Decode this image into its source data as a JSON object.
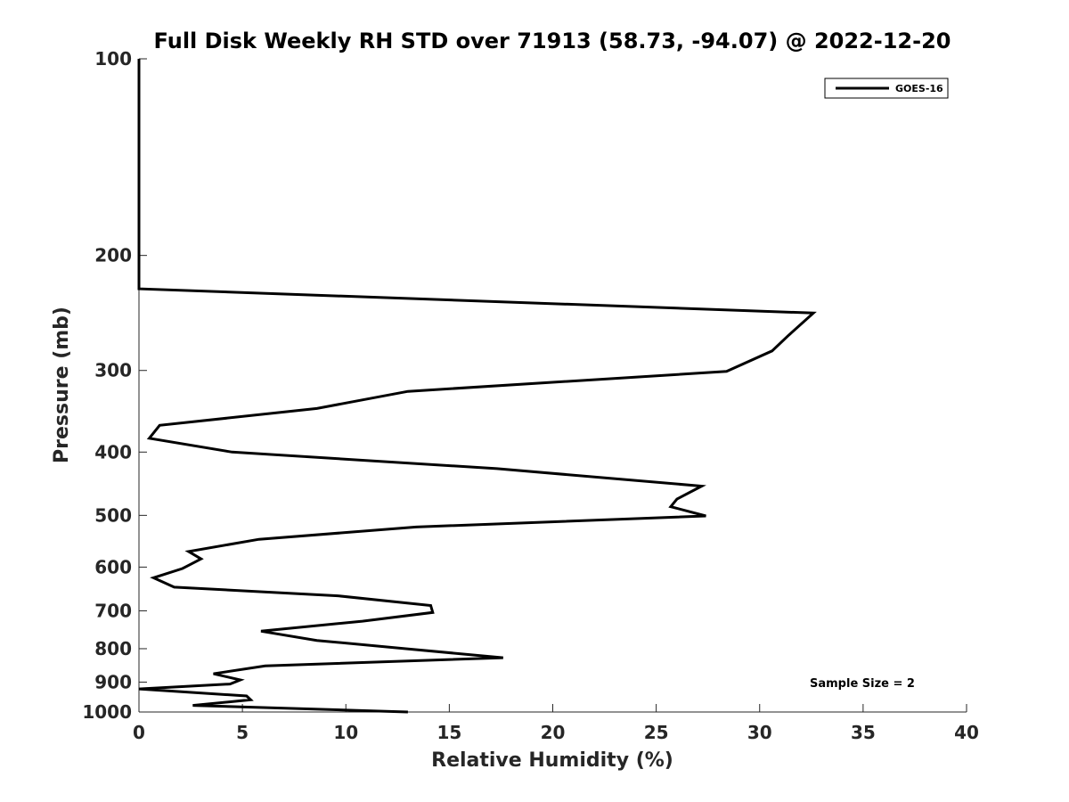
{
  "chart_data": {
    "type": "line",
    "title": "Full Disk Weekly RH STD over 71913 (58.73, -94.07) @ 2022-12-20",
    "xlabel": "Relative Humidity (%)",
    "ylabel": "Pressure (mb)",
    "xlim": [
      0,
      40
    ],
    "ylim": [
      100,
      1000
    ],
    "yscale": "log",
    "yreversed": true,
    "x_ticks": [
      0,
      5,
      10,
      15,
      20,
      25,
      30,
      35,
      40
    ],
    "y_ticks": [
      100,
      200,
      300,
      400,
      500,
      600,
      700,
      800,
      900,
      1000
    ],
    "grid": false,
    "legend_position": "top-right",
    "annotation": "Sample Size = 2",
    "series": [
      {
        "name": "GOES-16",
        "color": "#000000",
        "points": [
          [
            0,
            100
          ],
          [
            0,
            150
          ],
          [
            0,
            200
          ],
          [
            0,
            225
          ],
          [
            32.6,
            245
          ],
          [
            31.4,
            265
          ],
          [
            30.6,
            280
          ],
          [
            28.4,
            301
          ],
          [
            13.0,
            323
          ],
          [
            8.6,
            343
          ],
          [
            1.0,
            364
          ],
          [
            0.5,
            381
          ],
          [
            4.5,
            400
          ],
          [
            17.3,
            424
          ],
          [
            27.2,
            451
          ],
          [
            26.0,
            472
          ],
          [
            25.7,
            485
          ],
          [
            27.4,
            501
          ],
          [
            13.4,
            521
          ],
          [
            5.8,
            544
          ],
          [
            2.4,
            568
          ],
          [
            3.0,
            583
          ],
          [
            2.1,
            603
          ],
          [
            0.7,
            623
          ],
          [
            1.7,
            644
          ],
          [
            9.6,
            664
          ],
          [
            14.1,
            687
          ],
          [
            14.2,
            704
          ],
          [
            10.8,
            726
          ],
          [
            5.9,
            752
          ],
          [
            8.6,
            777
          ],
          [
            12.9,
            800
          ],
          [
            17.6,
            826
          ],
          [
            6.1,
            850
          ],
          [
            3.6,
            874
          ],
          [
            4.9,
            893
          ],
          [
            4.4,
            906
          ],
          [
            0,
            922
          ],
          [
            5.2,
            945
          ],
          [
            5.4,
            958
          ],
          [
            2.6,
            977
          ],
          [
            13.0,
            1000
          ]
        ]
      }
    ]
  }
}
